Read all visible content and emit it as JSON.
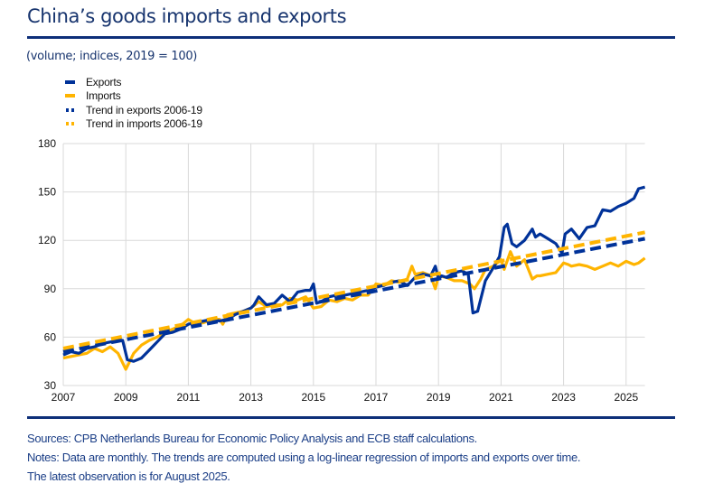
{
  "header": {
    "title": "China’s goods imports and exports",
    "subtitle": "(volume; indices, 2019 = 100)"
  },
  "legend": [
    {
      "label": "Exports",
      "style": "solid",
      "color": "#003299"
    },
    {
      "label": "Imports",
      "style": "solid",
      "color": "#ffb400"
    },
    {
      "label": "Trend in exports 2006-19",
      "style": "dotted",
      "color": "#003299"
    },
    {
      "label": "Trend in imports 2006-19",
      "style": "dotted",
      "color": "#ffb400"
    }
  ],
  "footer": {
    "sources": "Sources: CPB Netherlands Bureau for Economic Policy Analysis and ECB staff calculations.",
    "notes": "Notes: Data are monthly. The trends are computed using a log-linear regression of imports and exports over time.",
    "latest": "The latest observation is for August 2025."
  },
  "chart_data": {
    "type": "line",
    "title": "China’s goods imports and exports",
    "subtitle": "(volume; indices, 2019 = 100)",
    "xlabel": "",
    "ylabel": "",
    "xlim": [
      2007.0,
      2025.6
    ],
    "ylim": [
      30,
      180
    ],
    "yticks": [
      30,
      60,
      90,
      120,
      150,
      180
    ],
    "xticks": [
      2007,
      2009,
      2011,
      2013,
      2015,
      2017,
      2019,
      2021,
      2023,
      2025
    ],
    "grid": true,
    "legend_position": "top-left",
    "series": [
      {
        "name": "Exports",
        "color": "#003299",
        "style": "solid",
        "x": [
          2007.0,
          2007.25,
          2007.5,
          2007.75,
          2008.0,
          2008.25,
          2008.5,
          2008.75,
          2008.9,
          2009.05,
          2009.25,
          2009.5,
          2009.75,
          2010.0,
          2010.25,
          2010.5,
          2010.75,
          2011.0,
          2011.25,
          2011.5,
          2011.75,
          2012.0,
          2012.25,
          2012.5,
          2012.75,
          2013.0,
          2013.1,
          2013.25,
          2013.5,
          2013.75,
          2014.0,
          2014.25,
          2014.5,
          2014.75,
          2014.9,
          2015.0,
          2015.1,
          2015.25,
          2015.5,
          2015.75,
          2016.0,
          2016.25,
          2016.5,
          2016.75,
          2017.0,
          2017.25,
          2017.5,
          2017.75,
          2018.0,
          2018.25,
          2018.5,
          2018.75,
          2018.9,
          2019.0,
          2019.1,
          2019.25,
          2019.5,
          2019.75,
          2019.95,
          2020.1,
          2020.25,
          2020.5,
          2020.75,
          2020.95,
          2021.1,
          2021.2,
          2021.35,
          2021.5,
          2021.75,
          2022.0,
          2022.1,
          2022.25,
          2022.5,
          2022.75,
          2022.95,
          2023.05,
          2023.25,
          2023.5,
          2023.75,
          2024.0,
          2024.25,
          2024.5,
          2024.75,
          2025.0,
          2025.25,
          2025.4,
          2025.6
        ],
        "values": [
          49,
          51,
          50,
          53,
          54,
          56,
          57,
          58,
          58,
          46,
          45,
          47,
          52,
          57,
          62,
          63,
          65,
          68,
          69,
          70,
          71,
          70,
          71,
          74,
          76,
          78,
          80,
          85,
          80,
          81,
          86,
          82,
          88,
          89,
          89,
          93,
          81,
          82,
          85,
          86,
          86,
          87,
          88,
          89,
          91,
          92,
          94,
          95,
          92,
          97,
          99,
          98,
          104,
          96,
          98,
          97,
          100,
          101,
          99,
          75,
          76,
          95,
          103,
          110,
          128,
          130,
          118,
          116,
          120,
          127,
          122,
          124,
          121,
          118,
          112,
          124,
          127,
          121,
          128,
          129,
          139,
          138,
          141,
          143,
          146,
          152,
          153
        ],
        "unit": "index"
      },
      {
        "name": "Imports",
        "color": "#ffb400",
        "style": "solid",
        "x": [
          2007.0,
          2007.25,
          2007.5,
          2007.75,
          2008.0,
          2008.25,
          2008.5,
          2008.75,
          2009.0,
          2009.1,
          2009.25,
          2009.5,
          2009.75,
          2010.0,
          2010.25,
          2010.5,
          2010.75,
          2011.0,
          2011.25,
          2011.5,
          2011.75,
          2012.0,
          2012.1,
          2012.25,
          2012.5,
          2012.75,
          2013.0,
          2013.25,
          2013.5,
          2013.75,
          2014.0,
          2014.25,
          2014.5,
          2014.75,
          2015.0,
          2015.25,
          2015.5,
          2015.75,
          2016.0,
          2016.25,
          2016.5,
          2016.75,
          2017.0,
          2017.25,
          2017.5,
          2017.75,
          2018.0,
          2018.15,
          2018.25,
          2018.5,
          2018.75,
          2018.9,
          2019.0,
          2019.25,
          2019.5,
          2019.75,
          2020.0,
          2020.15,
          2020.35,
          2020.5,
          2020.75,
          2021.0,
          2021.1,
          2021.3,
          2021.5,
          2021.75,
          2022.0,
          2022.15,
          2022.25,
          2022.5,
          2022.75,
          2023.0,
          2023.15,
          2023.25,
          2023.5,
          2023.75,
          2024.0,
          2024.25,
          2024.5,
          2024.75,
          2025.0,
          2025.25,
          2025.4,
          2025.6
        ],
        "values": [
          47,
          48,
          49,
          50,
          53,
          51,
          54,
          50,
          40,
          44,
          50,
          55,
          58,
          60,
          63,
          65,
          67,
          71,
          68,
          69,
          71,
          71,
          68,
          74,
          75,
          76,
          78,
          82,
          79,
          80,
          80,
          84,
          83,
          85,
          78,
          79,
          83,
          82,
          84,
          83,
          86,
          86,
          93,
          92,
          95,
          94,
          96,
          104,
          99,
          100,
          98,
          90,
          98,
          97,
          95,
          95,
          93,
          90,
          96,
          102,
          104,
          108,
          102,
          113,
          104,
          108,
          96,
          98,
          98,
          99,
          100,
          106,
          105,
          104,
          105,
          104,
          102,
          104,
          106,
          104,
          107,
          105,
          106,
          109
        ],
        "unit": "index"
      },
      {
        "name": "Trend in exports 2006-19",
        "color": "#003299",
        "style": "dashed",
        "x": [
          2007.0,
          2025.6
        ],
        "values": [
          51,
          121
        ],
        "unit": "index"
      },
      {
        "name": "Trend in imports 2006-19",
        "color": "#ffb400",
        "style": "dashed",
        "x": [
          2007.0,
          2025.6
        ],
        "values": [
          53,
          125
        ],
        "unit": "index"
      }
    ]
  }
}
